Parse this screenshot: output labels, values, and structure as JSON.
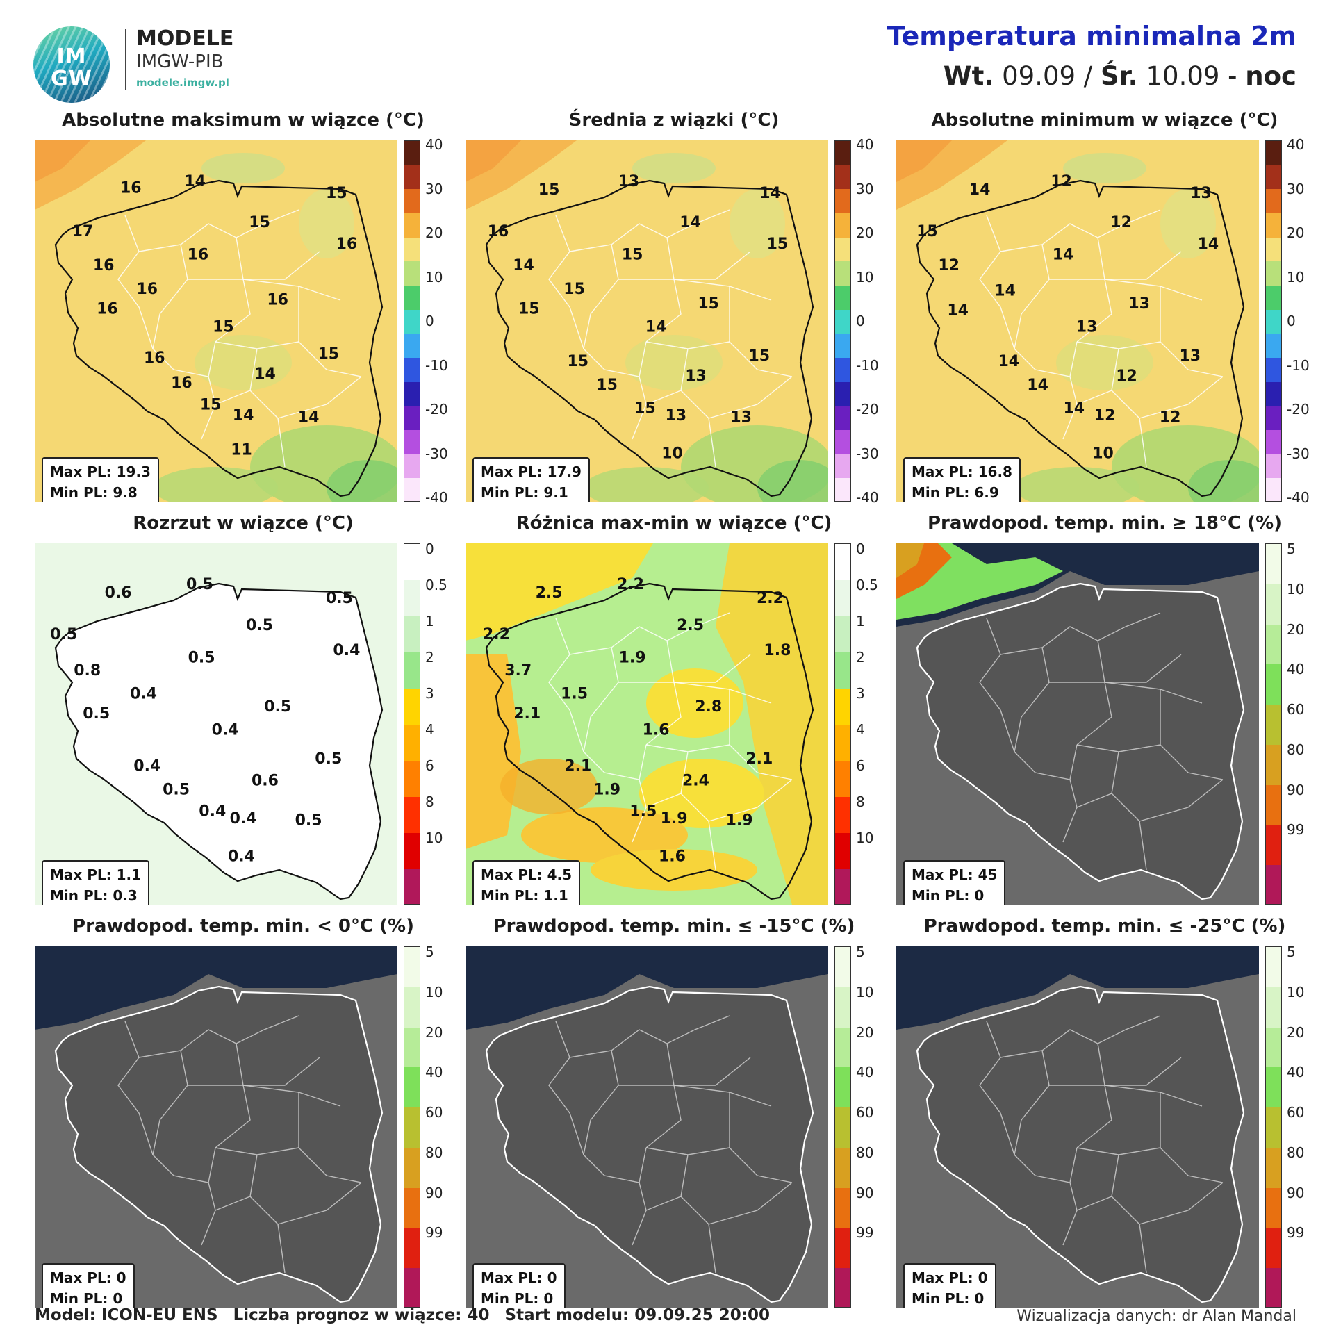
{
  "header": {
    "logo_top": "IM",
    "logo_bottom": "GW",
    "brand_line1": "MODELE",
    "brand_line2": "IMGW-PIB",
    "brand_url": "modele.imgw.pl",
    "title": "Temperatura minimalna 2m",
    "subtitle_day1": "Wt.",
    "subtitle_date1": " 09.09 / ",
    "subtitle_day2": "Śr.",
    "subtitle_date2": " 10.09 - ",
    "subtitle_period": "noc"
  },
  "colors": {
    "temp_fill": "#f5d873",
    "spread_fill": "#ffffff",
    "diff_fill": "#f7e03a",
    "prob_fill": "#5a5a5a",
    "sea": "#1c2a44",
    "title_blue": "#1a27b8"
  },
  "scales": {
    "temperature": {
      "ticks": [
        "40",
        "30",
        "20",
        "10",
        "0",
        "-10",
        "-20",
        "-30",
        "-40"
      ],
      "colors": [
        "#5a1e10",
        "#a3301a",
        "#e26a1c",
        "#f5b23a",
        "#f5e07a",
        "#b8e07a",
        "#4ccc6a",
        "#3fd6c8",
        "#3aa8f0",
        "#2f56e0",
        "#2a1fb0",
        "#6a1fc0",
        "#b44fe0",
        "#e7a8f0",
        "#fbe7fb"
      ]
    },
    "spread": {
      "ticks": [
        "0",
        "0.5",
        "1",
        "2",
        "3",
        "4",
        "6",
        "8",
        "10"
      ],
      "colors": [
        "#ffffff",
        "#eaf8e8",
        "#c8f0c0",
        "#98e68a",
        "#ffd400",
        "#ffb000",
        "#ff8000",
        "#ff3000",
        "#e00000",
        "#b0185a"
      ]
    },
    "probability": {
      "ticks": [
        "5",
        "10",
        "20",
        "40",
        "60",
        "80",
        "90",
        "99"
      ],
      "colors": [
        "#f2fbe8",
        "#d8f4c6",
        "#b6ec98",
        "#7ee05a",
        "#b8c030",
        "#d8a020",
        "#e87010",
        "#e02010",
        "#b01858"
      ]
    }
  },
  "panels": [
    {
      "title": "Absolutne maksimum w wiązce (°C)",
      "scale": "temperature",
      "fill": "temp",
      "max_label": "Max PL: 19.3",
      "min_label": "Min PL: 9.8",
      "values": [
        {
          "t": "16",
          "x": 0.265,
          "y": 0.145
        },
        {
          "t": "14",
          "x": 0.442,
          "y": 0.127
        },
        {
          "t": "15",
          "x": 0.832,
          "y": 0.16
        },
        {
          "t": "17",
          "x": 0.132,
          "y": 0.265
        },
        {
          "t": "15",
          "x": 0.62,
          "y": 0.24
        },
        {
          "t": "16",
          "x": 0.86,
          "y": 0.3
        },
        {
          "t": "16",
          "x": 0.19,
          "y": 0.36
        },
        {
          "t": "16",
          "x": 0.45,
          "y": 0.33
        },
        {
          "t": "16",
          "x": 0.31,
          "y": 0.425
        },
        {
          "t": "16",
          "x": 0.2,
          "y": 0.48
        },
        {
          "t": "16",
          "x": 0.67,
          "y": 0.455
        },
        {
          "t": "15",
          "x": 0.52,
          "y": 0.53
        },
        {
          "t": "16",
          "x": 0.33,
          "y": 0.615
        },
        {
          "t": "15",
          "x": 0.81,
          "y": 0.605
        },
        {
          "t": "14",
          "x": 0.635,
          "y": 0.66
        },
        {
          "t": "16",
          "x": 0.405,
          "y": 0.685
        },
        {
          "t": "15",
          "x": 0.485,
          "y": 0.745
        },
        {
          "t": "14",
          "x": 0.575,
          "y": 0.775
        },
        {
          "t": "14",
          "x": 0.755,
          "y": 0.78
        },
        {
          "t": "11",
          "x": 0.57,
          "y": 0.87
        }
      ]
    },
    {
      "title": "Średnia z wiązki (°C)",
      "scale": "temperature",
      "fill": "temp",
      "max_label": "Max PL: 17.9",
      "min_label": "Min PL: 9.1",
      "values": [
        {
          "t": "15",
          "x": 0.23,
          "y": 0.15
        },
        {
          "t": "13",
          "x": 0.45,
          "y": 0.127
        },
        {
          "t": "14",
          "x": 0.84,
          "y": 0.16
        },
        {
          "t": "16",
          "x": 0.09,
          "y": 0.265
        },
        {
          "t": "14",
          "x": 0.62,
          "y": 0.24
        },
        {
          "t": "15",
          "x": 0.86,
          "y": 0.3
        },
        {
          "t": "14",
          "x": 0.16,
          "y": 0.36
        },
        {
          "t": "15",
          "x": 0.46,
          "y": 0.33
        },
        {
          "t": "15",
          "x": 0.3,
          "y": 0.425
        },
        {
          "t": "15",
          "x": 0.175,
          "y": 0.48
        },
        {
          "t": "15",
          "x": 0.67,
          "y": 0.465
        },
        {
          "t": "14",
          "x": 0.525,
          "y": 0.53
        },
        {
          "t": "15",
          "x": 0.31,
          "y": 0.625
        },
        {
          "t": "15",
          "x": 0.81,
          "y": 0.61
        },
        {
          "t": "13",
          "x": 0.635,
          "y": 0.665
        },
        {
          "t": "15",
          "x": 0.39,
          "y": 0.69
        },
        {
          "t": "15",
          "x": 0.495,
          "y": 0.755
        },
        {
          "t": "13",
          "x": 0.58,
          "y": 0.775
        },
        {
          "t": "13",
          "x": 0.76,
          "y": 0.78
        },
        {
          "t": "10",
          "x": 0.57,
          "y": 0.88
        }
      ]
    },
    {
      "title": "Absolutne minimum w wiązce (°C)",
      "scale": "temperature",
      "fill": "temp",
      "max_label": "Max PL: 16.8",
      "min_label": "Min PL: 6.9",
      "values": [
        {
          "t": "14",
          "x": 0.23,
          "y": 0.15
        },
        {
          "t": "12",
          "x": 0.455,
          "y": 0.127
        },
        {
          "t": "13",
          "x": 0.84,
          "y": 0.16
        },
        {
          "t": "15",
          "x": 0.085,
          "y": 0.265
        },
        {
          "t": "12",
          "x": 0.62,
          "y": 0.24
        },
        {
          "t": "14",
          "x": 0.86,
          "y": 0.3
        },
        {
          "t": "12",
          "x": 0.145,
          "y": 0.36
        },
        {
          "t": "14",
          "x": 0.46,
          "y": 0.33
        },
        {
          "t": "14",
          "x": 0.3,
          "y": 0.43
        },
        {
          "t": "14",
          "x": 0.17,
          "y": 0.485
        },
        {
          "t": "13",
          "x": 0.67,
          "y": 0.465
        },
        {
          "t": "13",
          "x": 0.525,
          "y": 0.53
        },
        {
          "t": "14",
          "x": 0.31,
          "y": 0.625
        },
        {
          "t": "13",
          "x": 0.81,
          "y": 0.61
        },
        {
          "t": "12",
          "x": 0.635,
          "y": 0.665
        },
        {
          "t": "14",
          "x": 0.39,
          "y": 0.69
        },
        {
          "t": "14",
          "x": 0.49,
          "y": 0.755
        },
        {
          "t": "12",
          "x": 0.575,
          "y": 0.775
        },
        {
          "t": "12",
          "x": 0.755,
          "y": 0.78
        },
        {
          "t": "10",
          "x": 0.57,
          "y": 0.88
        }
      ]
    },
    {
      "title": "Rozrzut w wiązce (°C)",
      "scale": "spread",
      "fill": "spread",
      "max_label": "Max PL: 1.1",
      "min_label": "Min PL: 0.3",
      "values": [
        {
          "t": "0.6",
          "x": 0.23,
          "y": 0.15
        },
        {
          "t": "0.5",
          "x": 0.455,
          "y": 0.127
        },
        {
          "t": "0.5",
          "x": 0.84,
          "y": 0.165
        },
        {
          "t": "0.5",
          "x": 0.08,
          "y": 0.265
        },
        {
          "t": "0.5",
          "x": 0.62,
          "y": 0.24
        },
        {
          "t": "0.4",
          "x": 0.86,
          "y": 0.31
        },
        {
          "t": "0.8",
          "x": 0.145,
          "y": 0.365
        },
        {
          "t": "0.5",
          "x": 0.46,
          "y": 0.33
        },
        {
          "t": "0.4",
          "x": 0.3,
          "y": 0.43
        },
        {
          "t": "0.5",
          "x": 0.17,
          "y": 0.485
        },
        {
          "t": "0.5",
          "x": 0.67,
          "y": 0.465
        },
        {
          "t": "0.4",
          "x": 0.525,
          "y": 0.53
        },
        {
          "t": "0.4",
          "x": 0.31,
          "y": 0.63
        },
        {
          "t": "0.5",
          "x": 0.81,
          "y": 0.61
        },
        {
          "t": "0.6",
          "x": 0.635,
          "y": 0.67
        },
        {
          "t": "0.5",
          "x": 0.39,
          "y": 0.695
        },
        {
          "t": "0.4",
          "x": 0.49,
          "y": 0.755
        },
        {
          "t": "0.4",
          "x": 0.575,
          "y": 0.775
        },
        {
          "t": "0.5",
          "x": 0.755,
          "y": 0.78
        },
        {
          "t": "0.4",
          "x": 0.57,
          "y": 0.88
        }
      ]
    },
    {
      "title": "Różnica max-min w wiązce (°C)",
      "scale": "spread",
      "fill": "diff",
      "max_label": "Max PL: 4.5",
      "min_label": "Min PL: 1.1",
      "values": [
        {
          "t": "2.5",
          "x": 0.23,
          "y": 0.15
        },
        {
          "t": "2.2",
          "x": 0.455,
          "y": 0.127
        },
        {
          "t": "2.2",
          "x": 0.84,
          "y": 0.165
        },
        {
          "t": "2.2",
          "x": 0.085,
          "y": 0.265
        },
        {
          "t": "2.5",
          "x": 0.62,
          "y": 0.24
        },
        {
          "t": "1.8",
          "x": 0.86,
          "y": 0.31
        },
        {
          "t": "3.7",
          "x": 0.145,
          "y": 0.365
        },
        {
          "t": "1.9",
          "x": 0.46,
          "y": 0.33
        },
        {
          "t": "1.5",
          "x": 0.3,
          "y": 0.43
        },
        {
          "t": "2.1",
          "x": 0.17,
          "y": 0.485
        },
        {
          "t": "2.8",
          "x": 0.67,
          "y": 0.465
        },
        {
          "t": "1.6",
          "x": 0.525,
          "y": 0.53
        },
        {
          "t": "2.1",
          "x": 0.31,
          "y": 0.63
        },
        {
          "t": "2.1",
          "x": 0.81,
          "y": 0.61
        },
        {
          "t": "2.4",
          "x": 0.635,
          "y": 0.67
        },
        {
          "t": "1.9",
          "x": 0.39,
          "y": 0.695
        },
        {
          "t": "1.5",
          "x": 0.49,
          "y": 0.755
        },
        {
          "t": "1.9",
          "x": 0.575,
          "y": 0.775
        },
        {
          "t": "1.9",
          "x": 0.755,
          "y": 0.78
        },
        {
          "t": "1.6",
          "x": 0.57,
          "y": 0.88
        }
      ]
    },
    {
      "title": "Prawdopod. temp. min. ≥ 18°C (%)",
      "scale": "probability",
      "fill": "prob18",
      "max_label": "Max PL: 45",
      "min_label": "Min PL: 0",
      "values": []
    },
    {
      "title": "Prawdopod. temp. min. < 0°C (%)",
      "scale": "probability",
      "fill": "prob",
      "max_label": "Max PL: 0",
      "min_label": "Min PL: 0",
      "values": []
    },
    {
      "title": "Prawdopod. temp. min. ≤ -15°C (%)",
      "scale": "probability",
      "fill": "prob",
      "max_label": "Max PL: 0",
      "min_label": "Min PL: 0",
      "values": []
    },
    {
      "title": "Prawdopod. temp. min. ≤ -25°C (%)",
      "scale": "probability",
      "fill": "prob",
      "max_label": "Max PL: 0",
      "min_label": "Min PL: 0",
      "values": []
    }
  ],
  "footer": {
    "model": "Model: ICON-EU ENS",
    "members": "Liczba prognoz w wiązce: 40",
    "start": "Start modelu: 09.09.25  20:00",
    "credit": "Wizualizacja danych: dr Alan Mandal"
  }
}
